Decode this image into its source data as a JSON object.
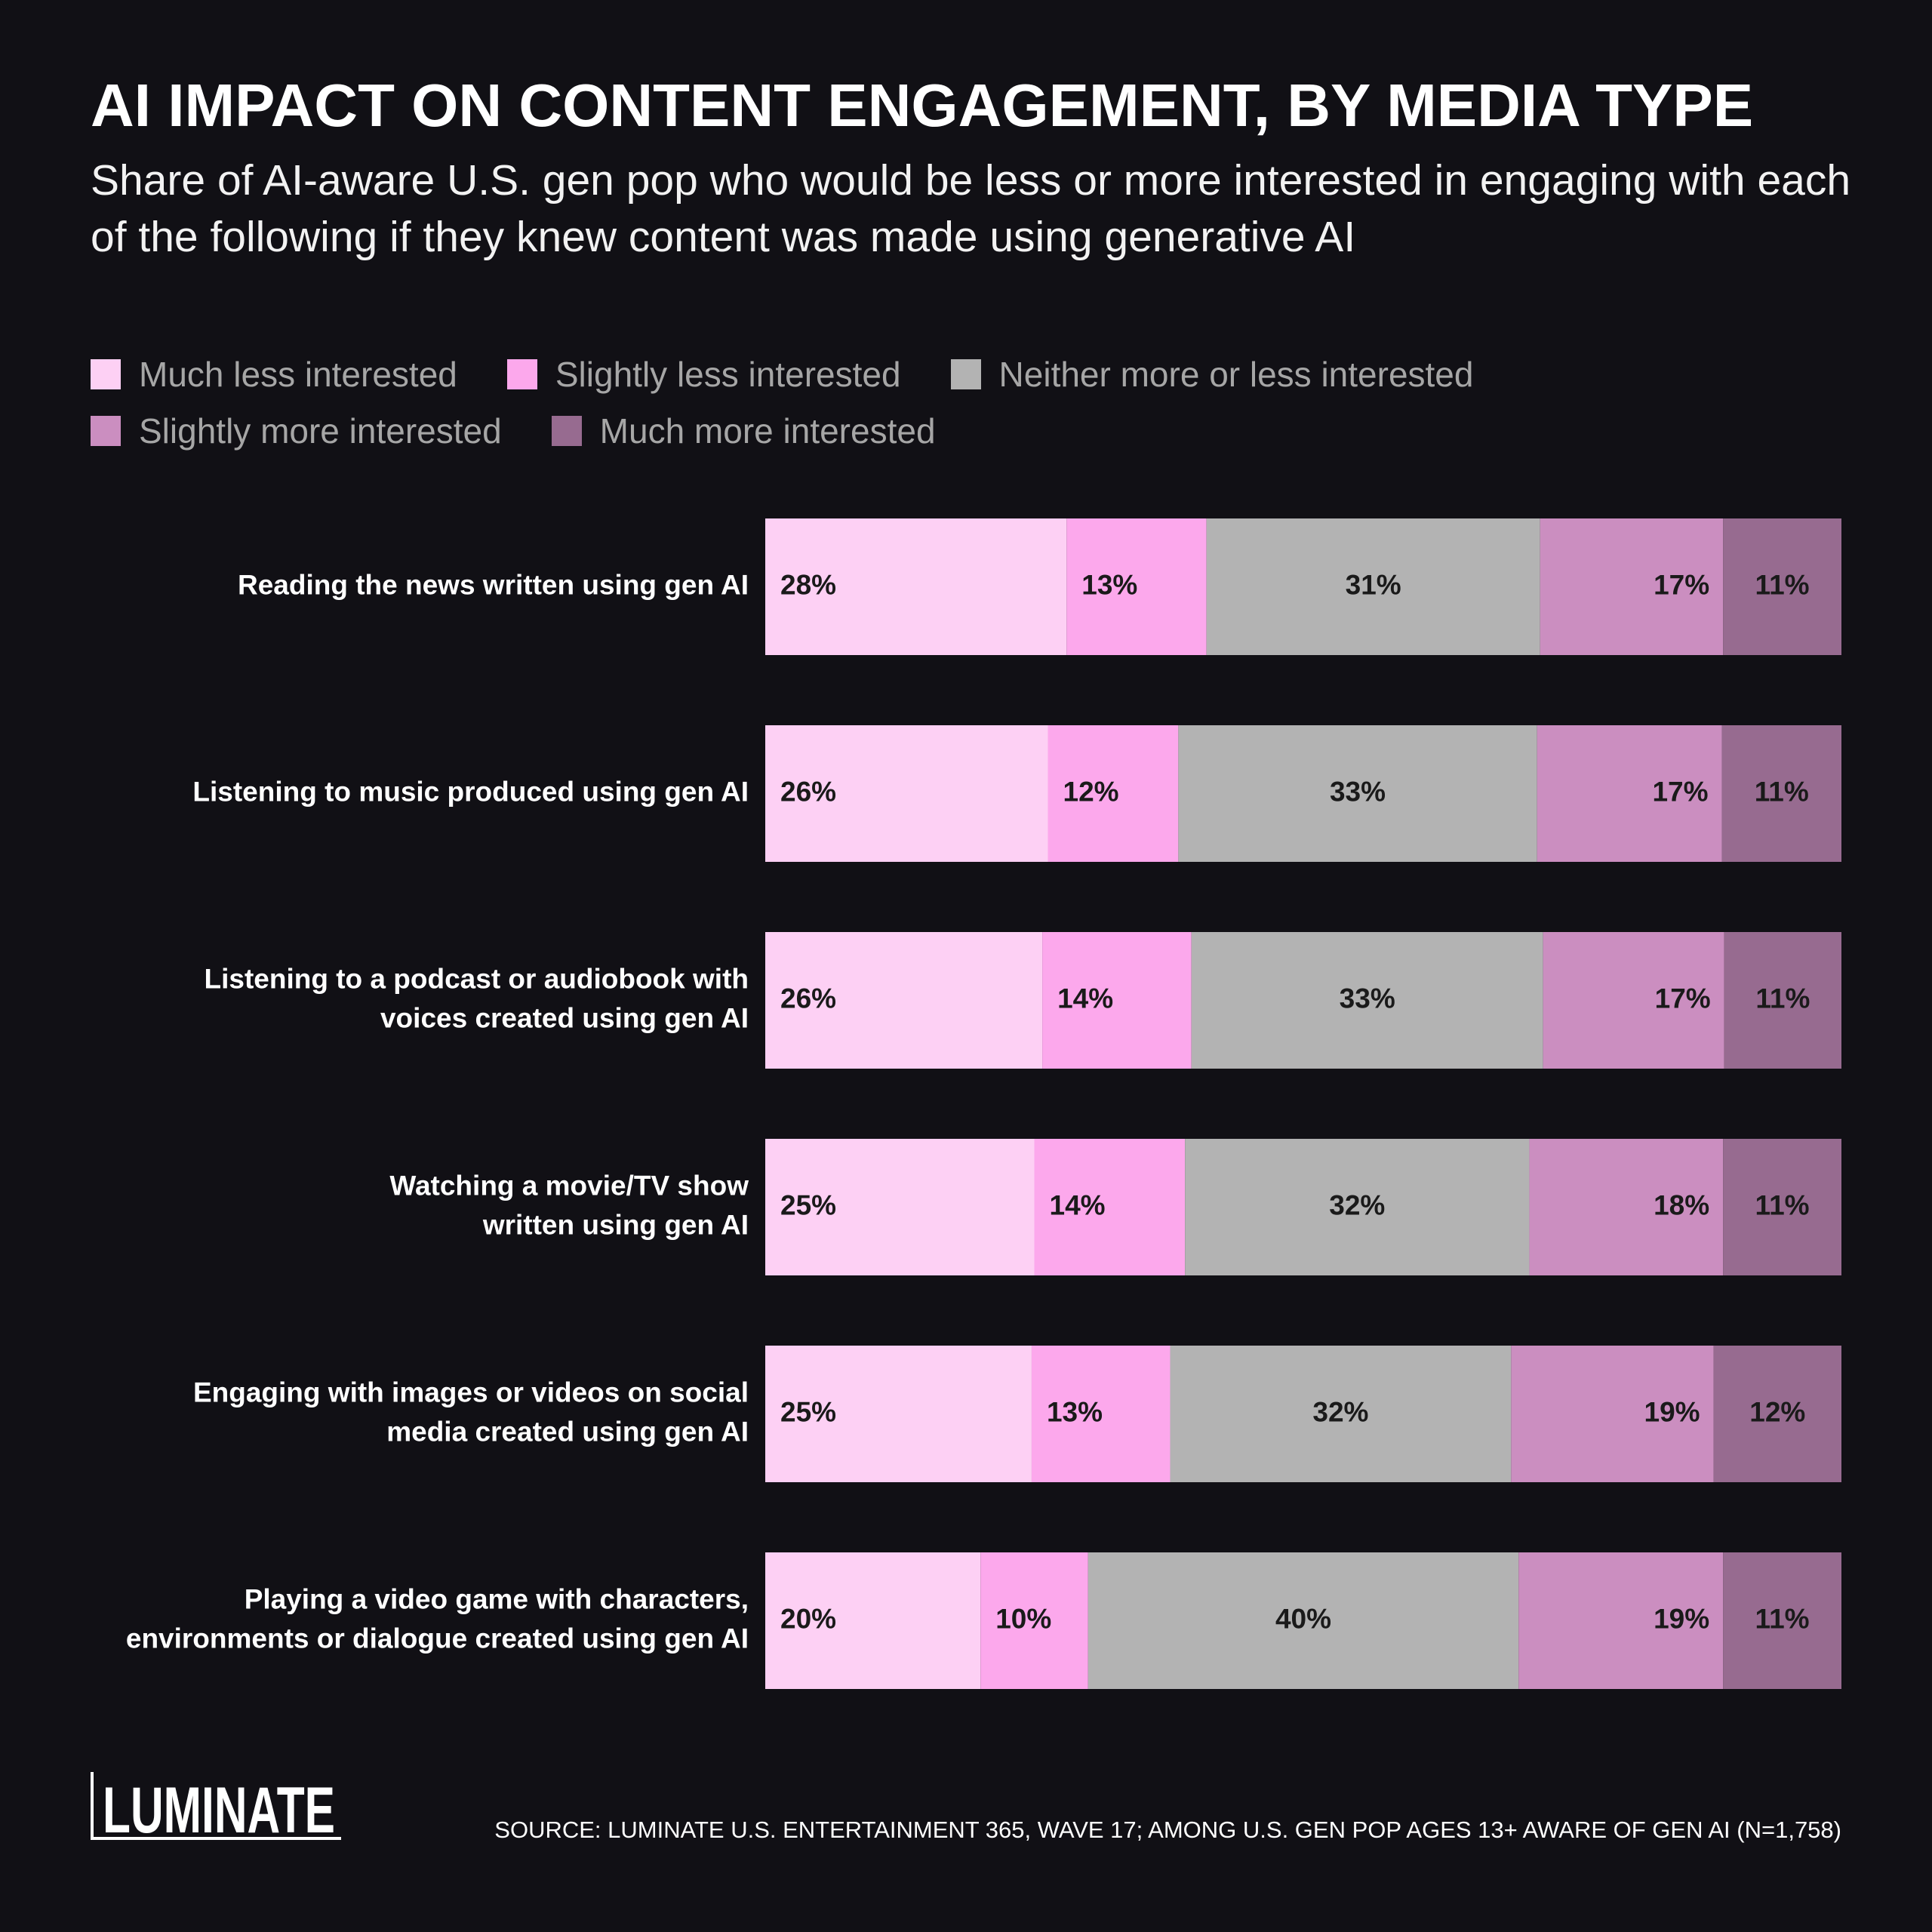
{
  "title": "AI IMPACT ON CONTENT ENGAGEMENT, BY MEDIA TYPE",
  "subtitle": "Share of AI-aware U.S. gen pop who would be less or more interested in engaging with each of the following if they knew content was made using generative AI",
  "colors": {
    "background": "#111015",
    "much_less": "#fdd0f4",
    "slightly_less": "#fca8ec",
    "neither": "#b3b3b3",
    "slightly_more": "#cb8ec0",
    "much_more": "#976b90"
  },
  "legend_rows": [
    [
      "Much less interested",
      "Slightly less interested",
      "Neither more or less interested"
    ],
    [
      "Slightly more interested",
      "Much more interested"
    ]
  ],
  "chart_data": {
    "type": "bar",
    "orientation": "horizontal",
    "stacked": true,
    "categories": [
      [
        "Reading the news written using gen AI"
      ],
      [
        "Listening to music produced using gen AI"
      ],
      [
        "Listening to a podcast or audiobook with",
        "voices created using gen AI"
      ],
      [
        "Watching a movie/TV show",
        "written using gen AI"
      ],
      [
        "Engaging with images or videos on social",
        "media created using gen AI"
      ],
      [
        "Playing a video game with characters,",
        "environments or dialogue created using gen AI"
      ]
    ],
    "series": [
      {
        "name": "Much less interested",
        "color": "#fdd0f4",
        "values": [
          28,
          26,
          26,
          25,
          25,
          20
        ]
      },
      {
        "name": "Slightly less interested",
        "color": "#fca8ec",
        "values": [
          13,
          12,
          14,
          14,
          13,
          10
        ]
      },
      {
        "name": "Neither more or less interested",
        "color": "#b3b3b3",
        "values": [
          31,
          33,
          33,
          32,
          32,
          40
        ]
      },
      {
        "name": "Slightly more interested",
        "color": "#cb8ec0",
        "values": [
          17,
          17,
          17,
          18,
          19,
          19
        ]
      },
      {
        "name": "Much more interested",
        "color": "#976b90",
        "values": [
          11,
          11,
          11,
          11,
          12,
          11
        ]
      }
    ],
    "value_suffix": "%",
    "label_alignment": [
      "left",
      "left",
      "center",
      "right",
      "center"
    ]
  },
  "logo": "LUMINATE",
  "source": "SOURCE: LUMINATE U.S. ENTERTAINMENT 365, WAVE 17; AMONG U.S. GEN POP AGES 13+ AWARE OF GEN AI (N=1,758)"
}
